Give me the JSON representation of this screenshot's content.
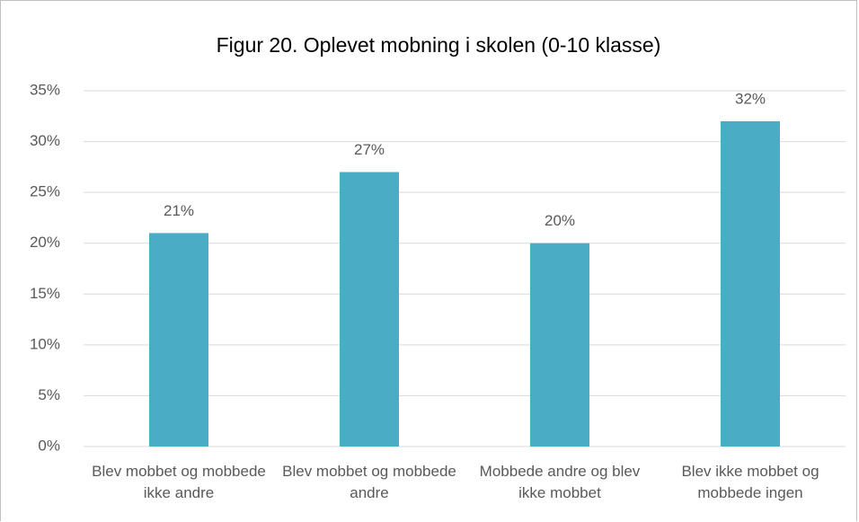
{
  "chart_data": {
    "type": "bar",
    "title": "Figur 20. Oplevet mobning i skolen (0-10 klasse)",
    "categories": [
      "Blev mobbet og mobbede ikke andre",
      "Blev mobbet og mobbede andre",
      "Mobbede andre og blev ikke mobbet",
      "Blev ikke mobbet og mobbede ingen"
    ],
    "values": [
      21,
      27,
      20,
      32
    ],
    "value_labels": [
      "21%",
      "27%",
      "20%",
      "32%"
    ],
    "color": "#4bacc6",
    "ylim": [
      0,
      35
    ],
    "yticks": [
      {
        "value": 0,
        "label": "0%"
      },
      {
        "value": 5,
        "label": "5%"
      },
      {
        "value": 10,
        "label": "10%"
      },
      {
        "value": 15,
        "label": "15%"
      },
      {
        "value": 20,
        "label": "20%"
      },
      {
        "value": 25,
        "label": "25%"
      },
      {
        "value": 30,
        "label": "30%"
      },
      {
        "value": 35,
        "label": "35%"
      }
    ],
    "grid": true
  }
}
